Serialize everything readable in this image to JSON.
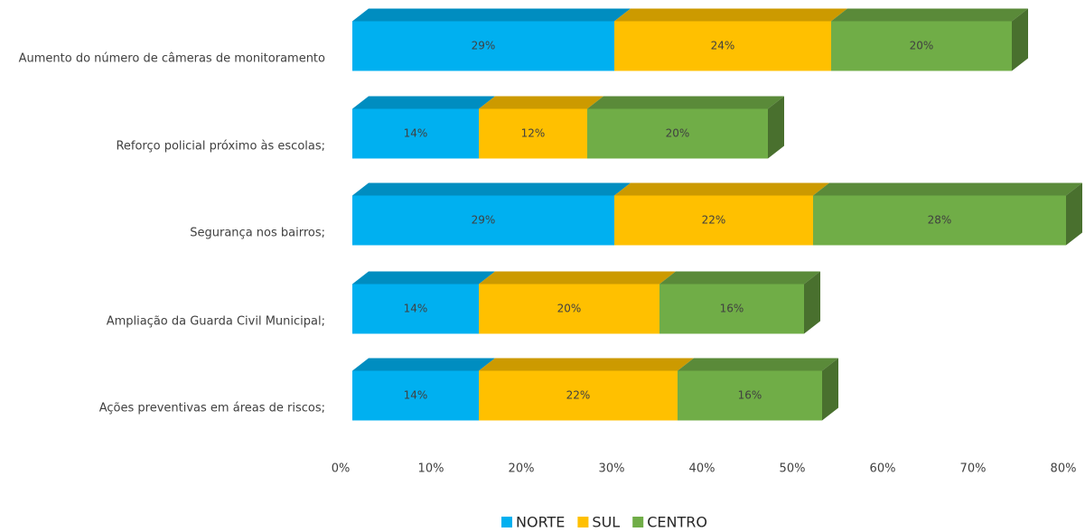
{
  "chart_data": {
    "type": "bar",
    "orientation": "horizontal",
    "stacked": true,
    "three_d": true,
    "categories": [
      "Aumento do número de câmeras de monitoramento",
      "Reforço policial próximo às escolas;",
      "Segurança nos bairros;",
      "Ampliação da Guarda Civil Municipal;",
      "Ações preventivas em áreas de riscos;"
    ],
    "series": [
      {
        "name": "NORTE",
        "color": "#00b0f0",
        "values": [
          29,
          14,
          29,
          14,
          14
        ],
        "value_labels": [
          "29%",
          "14%",
          "29%",
          "14%",
          "14%"
        ]
      },
      {
        "name": "SUL",
        "color": "#ffc000",
        "values": [
          24,
          12,
          22,
          20,
          22
        ],
        "value_labels": [
          "24%",
          "12%",
          "22%",
          "20%",
          "22%"
        ]
      },
      {
        "name": "CENTRO",
        "color": "#70ad47",
        "values": [
          20,
          20,
          28,
          16,
          16
        ],
        "value_labels": [
          "20%",
          "20%",
          "28%",
          "16%",
          "16%"
        ]
      }
    ],
    "xlim": [
      0,
      80
    ],
    "xticks": [
      {
        "value": 0,
        "label": "0%"
      },
      {
        "value": 10,
        "label": "10%"
      },
      {
        "value": 20,
        "label": "20%"
      },
      {
        "value": 30,
        "label": "30%"
      },
      {
        "value": 40,
        "label": "40%"
      },
      {
        "value": 50,
        "label": "50%"
      },
      {
        "value": 60,
        "label": "60%"
      },
      {
        "value": 70,
        "label": "70%"
      },
      {
        "value": 80,
        "label": "80%"
      }
    ],
    "grid": false,
    "legend": "bottom"
  }
}
